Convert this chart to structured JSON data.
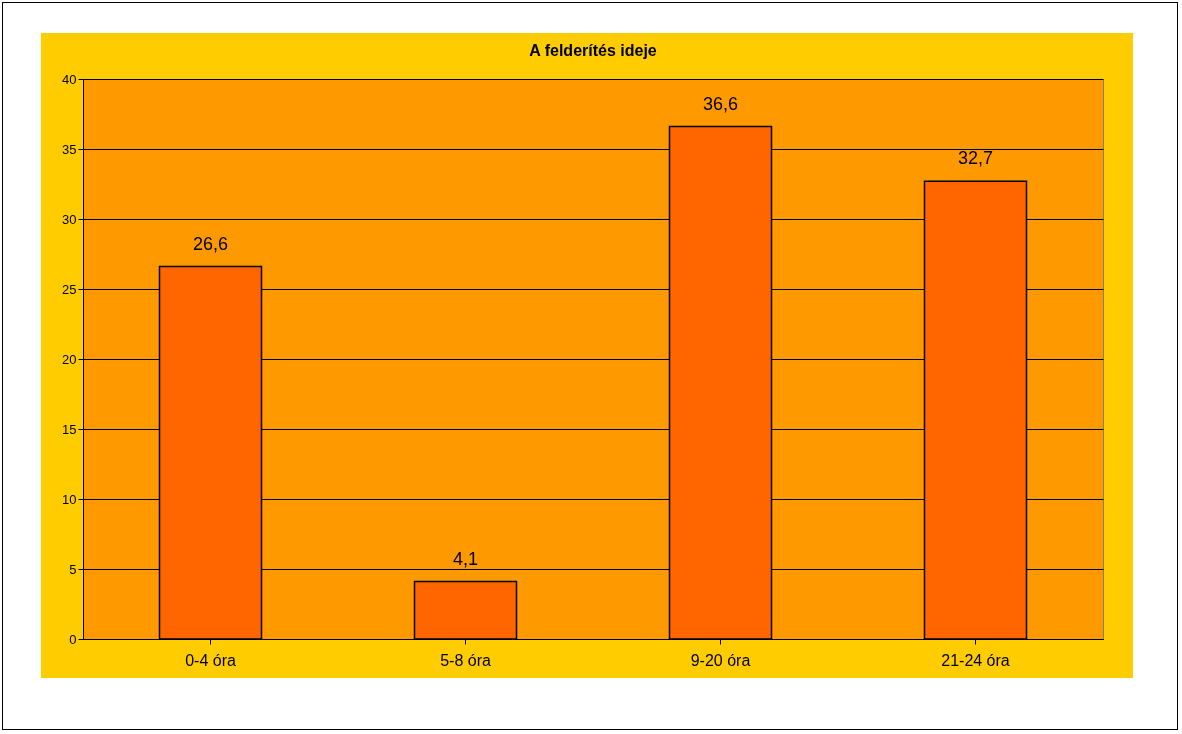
{
  "chart_data": {
    "type": "bar",
    "title": "A felderítés ideje",
    "categories": [
      "0-4 óra",
      "5-8 óra",
      "9-20 óra",
      "21-24 óra"
    ],
    "values": [
      26.6,
      4.1,
      36.6,
      32.7
    ],
    "value_labels": [
      "26,6",
      "4,1",
      "36,6",
      "32,7"
    ],
    "color": "#ff6600",
    "ylim": [
      0,
      40
    ],
    "yticks": [
      0,
      5,
      10,
      15,
      20,
      25,
      30,
      35,
      40
    ],
    "grid": "y"
  }
}
